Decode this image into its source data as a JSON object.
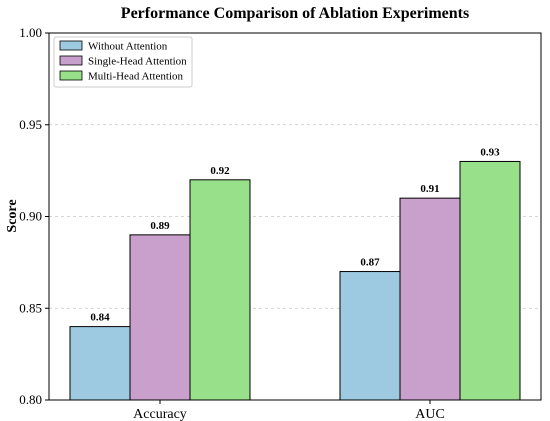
{
  "chart_data": {
    "type": "bar",
    "title": "Performance Comparison of Ablation Experiments",
    "xlabel": "",
    "ylabel": "Score",
    "categories": [
      "Accuracy",
      "AUC"
    ],
    "series": [
      {
        "name": "Without Attention",
        "color": "#9ecae1",
        "values": [
          0.84,
          0.87
        ]
      },
      {
        "name": "Single-Head Attention",
        "color": "#c9a0cc",
        "values": [
          0.89,
          0.91
        ]
      },
      {
        "name": "Multi-Head Attention",
        "color": "#98e08a",
        "values": [
          0.92,
          0.93
        ]
      }
    ],
    "data_labels": [
      [
        "0.84",
        "0.87"
      ],
      [
        "0.89",
        "0.91"
      ],
      [
        "0.92",
        "0.93"
      ]
    ],
    "ylim": [
      0.8,
      1.0
    ],
    "yticks": [
      "0.80",
      "0.85",
      "0.90",
      "0.95",
      "1.00"
    ],
    "ytick_values": [
      0.8,
      0.85,
      0.9,
      0.95,
      1.0
    ],
    "grid": "horizontal dashed",
    "legend_position": "top-left"
  }
}
